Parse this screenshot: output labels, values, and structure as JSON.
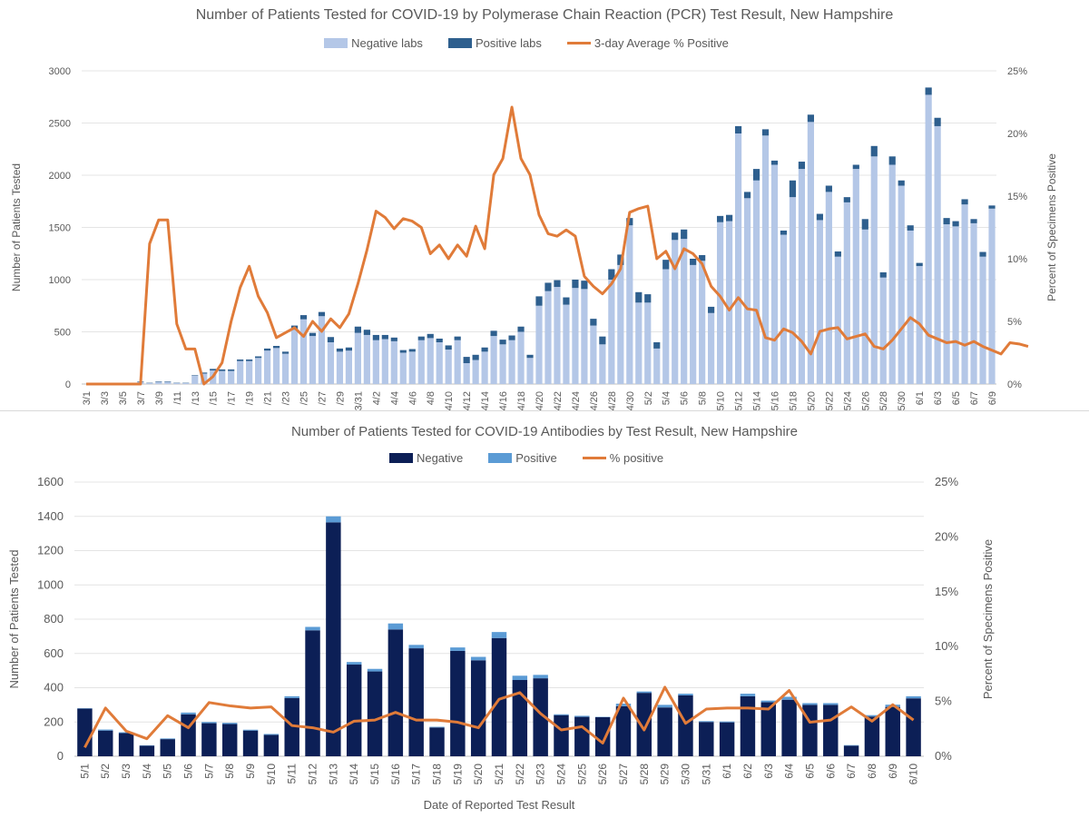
{
  "pcr": {
    "title": "Number of Patients Tested for COVID-19 by Polymerase Chain Reaction (PCR) Test Result, New Hampshire",
    "legend": {
      "negative": "Negative labs",
      "positive": "Positive labs",
      "average": "3-day Average % Positive"
    },
    "colors": {
      "negative": "#b4c7e7",
      "positive": "#2e5f8e",
      "line": "#e07b39"
    }
  },
  "antibody": {
    "title": "Number of Patients Tested for COVID-19 Antibodies by Test Result, New Hampshire",
    "legend": {
      "negative": "Negative",
      "positive": "Positive",
      "pct": "% positive"
    },
    "colors": {
      "negative": "#0c1f56",
      "positive": "#5b9bd5",
      "line": "#e07b39"
    }
  },
  "chart_data": [
    {
      "type": "bar",
      "stacked": true,
      "title": "Number of Patients Tested for COVID-19 by Polymerase Chain Reaction (PCR) Test Result, New Hampshire",
      "ylabel": "Number of Patients Tested",
      "y2label": "Percent of Specimens Positive",
      "ylim": [
        0,
        3000
      ],
      "y2lim": [
        0,
        25
      ],
      "yticks": [
        "0",
        "500",
        "1000",
        "1500",
        "2000",
        "2500",
        "3000"
      ],
      "y2ticks": [
        "0%",
        "5%",
        "10%",
        "15%",
        "20%",
        "25%"
      ],
      "xticks": [
        "3/1",
        "3/3",
        "3/5",
        "3/7",
        "3/9",
        "/11",
        "/13",
        "/15",
        "/17",
        "/19",
        "/21",
        "/23",
        "/25",
        "/27",
        "/29",
        "3/31",
        "4/2",
        "4/4",
        "4/6",
        "4/8",
        "4/10",
        "4/12",
        "4/14",
        "4/16",
        "4/18",
        "4/20",
        "4/22",
        "4/24",
        "4/26",
        "4/28",
        "4/30",
        "5/2",
        "5/4",
        "5/6",
        "5/8",
        "5/10",
        "5/12",
        "5/14",
        "5/16",
        "5/18",
        "5/20",
        "5/22",
        "5/24",
        "5/26",
        "5/28",
        "5/30",
        "6/1",
        "6/3",
        "6/5",
        "6/7",
        "6/9"
      ],
      "series": [
        {
          "name": "Negative labs",
          "values": [
            0,
            0,
            0,
            0,
            0,
            0,
            20,
            10,
            20,
            20,
            10,
            10,
            80,
            100,
            130,
            125,
            125,
            220,
            220,
            250,
            320,
            345,
            290,
            520,
            620,
            460,
            650,
            400,
            310,
            320,
            490,
            470,
            420,
            430,
            410,
            300,
            310,
            420,
            440,
            400,
            330,
            420,
            200,
            230,
            310,
            460,
            380,
            420,
            500,
            250,
            750,
            890,
            930,
            760,
            920,
            910,
            560,
            380,
            1000,
            1140,
            1520,
            780,
            780,
            340,
            1100,
            1380,
            1390,
            1140,
            1180,
            680,
            1550,
            1560,
            2400,
            1780,
            1950,
            2380,
            2100,
            1430,
            1790,
            2060,
            2510,
            1570,
            1840,
            1220,
            1740,
            2060,
            1480,
            2180,
            1020,
            2100,
            1900,
            1470,
            1130,
            2770,
            2470,
            1530,
            1510,
            1720,
            1540,
            1220,
            1680
          ]
        },
        {
          "name": "Positive labs",
          "values": [
            0,
            0,
            0,
            0,
            0,
            0,
            5,
            3,
            5,
            5,
            3,
            3,
            5,
            10,
            15,
            15,
            15,
            15,
            15,
            15,
            20,
            20,
            20,
            40,
            40,
            30,
            40,
            50,
            30,
            30,
            60,
            50,
            50,
            40,
            35,
            25,
            25,
            35,
            40,
            35,
            40,
            35,
            60,
            50,
            40,
            50,
            45,
            45,
            50,
            30,
            90,
            80,
            65,
            70,
            80,
            80,
            65,
            75,
            100,
            100,
            70,
            100,
            80,
            60,
            90,
            70,
            90,
            60,
            55,
            60,
            60,
            60,
            70,
            60,
            110,
            60,
            40,
            40,
            160,
            70,
            70,
            60,
            60,
            50,
            50,
            40,
            100,
            100,
            50,
            80,
            50,
            50,
            30,
            70,
            80,
            60,
            50,
            50,
            40,
            45,
            30
          ]
        },
        {
          "name": "3-day Average % Positive",
          "axis": "right",
          "values": [
            0,
            0,
            0,
            0,
            0,
            0,
            0,
            11.2,
            13.1,
            13.1,
            4.8,
            2.8,
            2.8,
            0,
            0.6,
            1.7,
            5.0,
            7.7,
            9.4,
            7.0,
            5.7,
            3.7,
            4.1,
            4.5,
            3.8,
            5.0,
            4.2,
            5.2,
            4.5,
            5.6,
            8.0,
            10.7,
            13.8,
            13.3,
            12.4,
            13.2,
            13.0,
            12.5,
            10.4,
            11.1,
            10.0,
            11.1,
            10.2,
            12.6,
            10.8,
            16.7,
            18.0,
            22.1,
            18.0,
            16.7,
            13.5,
            12.0,
            11.8,
            12.3,
            11.8,
            8.6,
            7.8,
            7.2,
            8.0,
            9.2,
            13.7,
            14.0,
            14.2,
            10.0,
            10.6,
            9.2,
            10.8,
            10.4,
            9.6,
            7.8,
            7.0,
            5.9,
            6.9,
            6.0,
            5.9,
            3.7,
            3.5,
            4.4,
            4.1,
            3.4,
            2.4,
            4.2,
            4.4,
            4.5,
            3.6,
            3.8,
            4.0,
            3.0,
            2.8,
            3.5,
            4.4,
            5.3,
            4.8,
            3.9,
            3.6,
            3.3,
            3.4,
            3.1,
            3.4,
            3.0,
            2.7,
            2.4,
            3.3,
            3.2,
            3.0
          ]
        }
      ]
    },
    {
      "type": "bar",
      "stacked": true,
      "title": "Number of Patients Tested for COVID-19 Antibodies by Test Result, New Hampshire",
      "xlabel": "Date of Reported Test Result",
      "ylabel": "Number of Patients Tested",
      "y2label": "Percent of Specimens Positive",
      "ylim": [
        0,
        1600
      ],
      "y2lim": [
        0,
        25
      ],
      "yticks": [
        "0",
        "200",
        "400",
        "600",
        "800",
        "1000",
        "1200",
        "1400",
        "1600"
      ],
      "y2ticks": [
        "0%",
        "5%",
        "10%",
        "15%",
        "20%",
        "25%"
      ],
      "categories": [
        "5/1",
        "5/2",
        "5/3",
        "5/4",
        "5/5",
        "5/6",
        "5/7",
        "5/8",
        "5/9",
        "5/10",
        "5/11",
        "5/12",
        "5/13",
        "5/14",
        "5/15",
        "5/16",
        "5/17",
        "5/18",
        "5/19",
        "5/20",
        "5/21",
        "5/22",
        "5/23",
        "5/24",
        "5/25",
        "5/26",
        "5/27",
        "5/28",
        "5/29",
        "5/30",
        "5/31",
        "6/1",
        "6/2",
        "6/3",
        "6/4",
        "6/5",
        "6/6",
        "6/7",
        "6/8",
        "6/9",
        "6/10"
      ],
      "series": [
        {
          "name": "Negative",
          "values": [
            278,
            150,
            135,
            62,
            100,
            245,
            193,
            188,
            150,
            125,
            340,
            735,
            1365,
            535,
            495,
            740,
            630,
            168,
            615,
            560,
            690,
            445,
            455,
            240,
            230,
            228,
            292,
            370,
            285,
            355,
            200,
            198,
            350,
            315,
            330,
            300,
            300,
            62,
            232,
            288,
            338
          ]
        },
        {
          "name": "Positive",
          "values": [
            2,
            6,
            5,
            2,
            4,
            10,
            7,
            7,
            5,
            5,
            10,
            20,
            35,
            15,
            15,
            35,
            20,
            4,
            20,
            20,
            35,
            25,
            20,
            5,
            6,
            2,
            15,
            8,
            15,
            10,
            5,
            5,
            15,
            10,
            17,
            10,
            10,
            3,
            8,
            13,
            12
          ]
        },
        {
          "name": "% positive",
          "axis": "right",
          "values": [
            0.8,
            4.4,
            2.3,
            1.6,
            3.7,
            2.6,
            4.9,
            4.6,
            4.4,
            4.5,
            2.8,
            2.6,
            2.2,
            3.2,
            3.3,
            4.0,
            3.3,
            3.3,
            3.1,
            2.6,
            5.2,
            5.8,
            3.9,
            2.4,
            2.7,
            1.2,
            5.3,
            2.4,
            6.3,
            3.0,
            4.3,
            4.4,
            4.4,
            4.3,
            6.0,
            3.1,
            3.3,
            4.5,
            3.2,
            4.7,
            3.3
          ]
        }
      ]
    }
  ]
}
